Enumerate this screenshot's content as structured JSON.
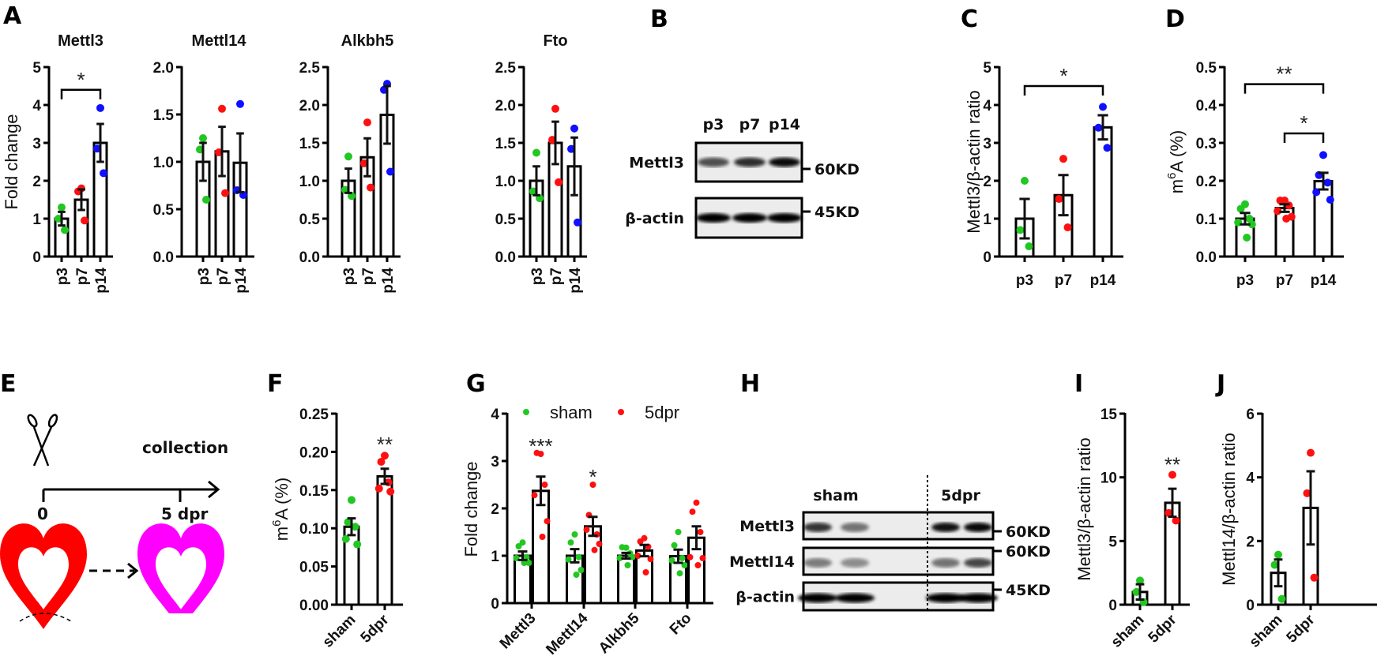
{
  "panel_labels": {
    "A": "A",
    "B": "B",
    "C": "C",
    "D": "D",
    "E": "E",
    "F": "F",
    "G": "G",
    "H": "H",
    "I": "I",
    "J": "J"
  },
  "colors": {
    "green": "#22c722",
    "red": "#ff1010",
    "blue": "#1010ff",
    "red_heart": "#ff0000",
    "magenta_heart": "#ff00ff"
  },
  "schematic_E": {
    "event": "collection",
    "timeline_start": "0",
    "timeline_end": "5 dpr",
    "icons": [
      "scissors-icon",
      "heart-icon",
      "heart-regenerated-icon"
    ]
  },
  "blot_B": {
    "lanes": [
      "p3",
      "p7",
      "p14"
    ],
    "rows": [
      {
        "label": "Mettl3",
        "marker": "60KD",
        "intensity": [
          0.55,
          0.75,
          0.95
        ]
      },
      {
        "label": "β-actin",
        "marker": "45KD",
        "intensity": [
          1,
          1,
          1
        ]
      }
    ]
  },
  "blot_H": {
    "groups": [
      "sham",
      "5dpr"
    ],
    "rows": [
      {
        "label": "Mettl3",
        "marker": "60KD",
        "intensity": [
          0.7,
          0.35,
          0.9,
          0.95
        ]
      },
      {
        "label": "Mettl14",
        "marker": "60KD",
        "intensity": [
          0.3,
          0.2,
          0.35,
          0.6
        ]
      },
      {
        "label": "β-actin",
        "marker": "45KD",
        "intensity": [
          1,
          1,
          1,
          1
        ]
      }
    ]
  },
  "chart_data": [
    {
      "id": "A1",
      "type": "bar",
      "title": "Mettl3",
      "ylabel": "Fold change",
      "ylim": [
        0,
        5
      ],
      "yticks": [
        "0",
        "1",
        "2",
        "3",
        "4",
        "5"
      ],
      "categories": [
        "p3",
        "p7",
        "p14"
      ],
      "point_colors": [
        "green",
        "red",
        "blue"
      ],
      "series": [
        {
          "values": [
            1.0,
            1.5,
            3.0
          ],
          "sem": [
            0.18,
            0.27,
            0.5
          ],
          "points": [
            [
              1.3,
              1.0,
              0.7
            ],
            [
              1.8,
              1.72,
              0.95
            ],
            [
              3.92,
              2.85,
              2.2
            ]
          ]
        }
      ],
      "significance": [
        {
          "from": 0,
          "to": 2,
          "y": 4.4,
          "label": "*"
        }
      ]
    },
    {
      "id": "A2",
      "type": "bar",
      "title": "Mettl14",
      "ylabel": "",
      "ylim": [
        0,
        2
      ],
      "yticks": [
        "0.0",
        "0.5",
        "1.0",
        "1.5",
        "2.0"
      ],
      "categories": [
        "p3",
        "p7",
        "p14"
      ],
      "point_colors": [
        "green",
        "red",
        "blue"
      ],
      "series": [
        {
          "values": [
            1.0,
            1.11,
            0.99
          ],
          "sem": [
            0.2,
            0.26,
            0.31
          ],
          "points": [
            [
              1.25,
              1.13,
              0.6
            ],
            [
              1.56,
              1.1,
              0.67
            ],
            [
              1.61,
              0.7,
              0.65
            ]
          ]
        }
      ],
      "significance": []
    },
    {
      "id": "A3",
      "type": "bar",
      "title": "Alkbh5",
      "ylabel": "",
      "ylim": [
        0,
        2.5
      ],
      "yticks": [
        "0.0",
        "0.5",
        "1.0",
        "1.5",
        "2.0",
        "2.5"
      ],
      "categories": [
        "p3",
        "p7",
        "p14"
      ],
      "point_colors": [
        "green",
        "red",
        "blue"
      ],
      "series": [
        {
          "values": [
            1.0,
            1.31,
            1.87
          ],
          "sem": [
            0.16,
            0.25,
            0.38
          ],
          "points": [
            [
              1.32,
              0.88,
              0.8
            ],
            [
              1.77,
              1.23,
              0.91
            ],
            [
              2.28,
              2.2,
              1.12
            ]
          ]
        }
      ],
      "significance": []
    },
    {
      "id": "A4",
      "type": "bar",
      "title": "Fto",
      "ylabel": "",
      "ylim": [
        0,
        2.5
      ],
      "yticks": [
        "0.0",
        "0.5",
        "1.0",
        "1.5",
        "2.0",
        "2.5"
      ],
      "categories": [
        "p3",
        "p7",
        "p14"
      ],
      "point_colors": [
        "green",
        "red",
        "blue"
      ],
      "series": [
        {
          "values": [
            1.0,
            1.5,
            1.19
          ],
          "sem": [
            0.19,
            0.28,
            0.38
          ],
          "points": [
            [
              1.37,
              0.86,
              0.77
            ],
            [
              1.95,
              1.54,
              0.98
            ],
            [
              1.69,
              1.42,
              0.45
            ]
          ]
        }
      ],
      "significance": []
    },
    {
      "id": "C",
      "type": "bar",
      "title": "",
      "ylabel": "Mettl3/β-actin ratio",
      "ylim": [
        0,
        5
      ],
      "yticks": [
        "0",
        "1",
        "2",
        "3",
        "4",
        "5"
      ],
      "categories": [
        "p3",
        "p7",
        "p14"
      ],
      "point_colors": [
        "green",
        "red",
        "blue"
      ],
      "series": [
        {
          "values": [
            1.0,
            1.62,
            3.41
          ],
          "sem": [
            0.52,
            0.53,
            0.32
          ],
          "points": [
            [
              2.0,
              0.7,
              0.27
            ],
            [
              2.58,
              1.52,
              0.77
            ],
            [
              3.95,
              3.4,
              2.87
            ]
          ]
        }
      ],
      "significance": [
        {
          "from": 0,
          "to": 2,
          "y": 4.5,
          "label": "*"
        }
      ]
    },
    {
      "id": "D",
      "type": "bar",
      "title": "",
      "ylabel": "m6A (%)",
      "ylim": [
        0,
        0.5
      ],
      "yticks": [
        "0.0",
        "0.1",
        "0.2",
        "0.3",
        "0.4",
        "0.5"
      ],
      "categories": [
        "p3",
        "p7",
        "p14"
      ],
      "point_colors": [
        "green",
        "red",
        "blue"
      ],
      "series": [
        {
          "values": [
            0.1,
            0.128,
            0.199
          ],
          "sem": [
            0.015,
            0.01,
            0.022
          ],
          "points": [
            [
              0.138,
              0.126,
              0.1,
              0.09,
              0.085,
              0.05
            ],
            [
              0.148,
              0.148,
              0.135,
              0.12,
              0.105,
              0.1
            ],
            [
              0.268,
              0.215,
              0.195,
              0.17,
              0.15
            ]
          ]
        }
      ],
      "significance": [
        {
          "from": 0,
          "to": 2,
          "y": 0.455,
          "label": "**"
        },
        {
          "from": 1,
          "to": 2,
          "y": 0.325,
          "label": "*"
        }
      ]
    },
    {
      "id": "F",
      "type": "bar",
      "title": "",
      "ylabel": "m6A (%)",
      "ylim": [
        0,
        0.25
      ],
      "yticks": [
        "0.00",
        "0.05",
        "0.10",
        "0.15",
        "0.20",
        "0.25"
      ],
      "categories": [
        "sham",
        "5dpr"
      ],
      "point_colors": [
        "green",
        "red"
      ],
      "series": [
        {
          "values": [
            0.102,
            0.168
          ],
          "sem": [
            0.011,
            0.01
          ],
          "points": [
            [
              0.137,
              0.108,
              0.102,
              0.086,
              0.079
            ],
            [
              0.195,
              0.187,
              0.16,
              0.152,
              0.148
            ]
          ]
        }
      ],
      "marks": [
        {
          "at": 1,
          "y": 0.215,
          "label": "**"
        }
      ]
    },
    {
      "id": "G",
      "type": "bar",
      "title": "",
      "ylabel": "Fold change",
      "ylim": [
        0,
        4
      ],
      "yticks": [
        "0",
        "1",
        "2",
        "3",
        "4"
      ],
      "categories": [
        "Mettl3",
        "Mettl14",
        "Alkbh5",
        "Fto"
      ],
      "legend": "top",
      "series": [
        {
          "name": "sham",
          "color": "green",
          "values": [
            1.0,
            1.0,
            1.0,
            0.99
          ],
          "sem": [
            0.09,
            0.14,
            0.06,
            0.14
          ],
          "points": [
            [
              1.28,
              1.2,
              0.97,
              0.95,
              0.85,
              0.85
            ],
            [
              1.45,
              1.28,
              0.97,
              0.92,
              0.7,
              0.6
            ],
            [
              1.17,
              1.18,
              1.05,
              0.95,
              0.97,
              0.8
            ],
            [
              1.5,
              1.22,
              0.95,
              0.9,
              0.8,
              0.63
            ]
          ]
        },
        {
          "name": "5dpr",
          "color": "red",
          "values": [
            2.37,
            1.62,
            1.11,
            1.38
          ],
          "sem": [
            0.3,
            0.2,
            0.12,
            0.24
          ],
          "points": [
            [
              3.15,
              3.17,
              2.5,
              2.28,
              1.73,
              1.4
            ],
            [
              2.5,
              1.86,
              1.45,
              1.55,
              1.25,
              1.12
            ],
            [
              1.37,
              1.3,
              1.19,
              1.0,
              0.93,
              0.65
            ],
            [
              2.12,
              1.93,
              1.5,
              0.97,
              0.95,
              0.8
            ]
          ]
        }
      ],
      "marks": [
        {
          "at": 0,
          "series": 1,
          "y": 3.4,
          "label": "***"
        },
        {
          "at": 1,
          "series": 1,
          "y": 2.75,
          "label": "*"
        }
      ]
    },
    {
      "id": "I",
      "type": "bar",
      "title": "",
      "ylabel": "Mettl3/β-actin ratio",
      "ylim": [
        0,
        15
      ],
      "yticks": [
        "0",
        "5",
        "10",
        "15"
      ],
      "categories": [
        "sham",
        "5dpr"
      ],
      "point_colors": [
        "green",
        "red"
      ],
      "series": [
        {
          "values": [
            1.0,
            8.0
          ],
          "sem": [
            0.6,
            1.1
          ],
          "points": [
            [
              1.9,
              1.0,
              0.2
            ],
            [
              10.2,
              7.2,
              6.6
            ]
          ]
        }
      ],
      "marks": [
        {
          "at": 1,
          "y": 11.3,
          "label": "**"
        }
      ]
    },
    {
      "id": "J",
      "type": "bar",
      "title": "",
      "ylabel": "Mettl14/β-actin ratio",
      "ylim": [
        0,
        6
      ],
      "yticks": [
        "0",
        "2",
        "4",
        "6"
      ],
      "categories": [
        "sham",
        "5dpr"
      ],
      "point_colors": [
        "green",
        "red"
      ],
      "series": [
        {
          "values": [
            1.0,
            3.04
          ],
          "sem": [
            0.42,
            1.15
          ],
          "points": [
            [
              1.57,
              1.25,
              0.18
            ],
            [
              4.77,
              3.5,
              0.85
            ]
          ]
        }
      ],
      "marks": []
    }
  ]
}
